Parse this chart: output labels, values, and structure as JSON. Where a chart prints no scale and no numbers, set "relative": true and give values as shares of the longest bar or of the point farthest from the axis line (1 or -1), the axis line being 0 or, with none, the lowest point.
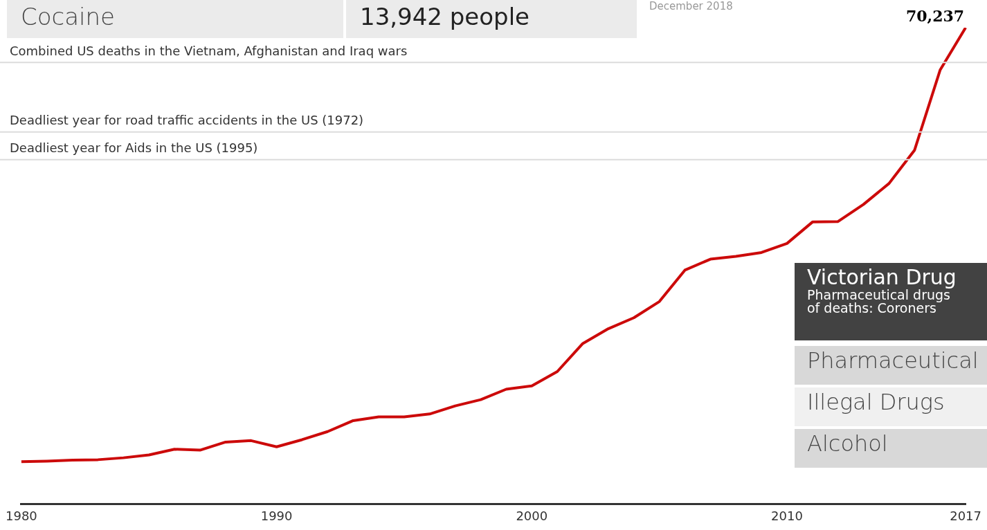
{
  "chart_data": {
    "type": "line",
    "relative": true,
    "categories": [
      "1980",
      null,
      null,
      null,
      null,
      null,
      null,
      null,
      null,
      null,
      "1990",
      null,
      null,
      null,
      null,
      null,
      null,
      null,
      null,
      null,
      "2000",
      null,
      null,
      null,
      null,
      null,
      null,
      null,
      null,
      null,
      "2010",
      null,
      null,
      null,
      null,
      null,
      null,
      "2017"
    ],
    "series": [
      {
        "color": "#cc0a0a",
        "values": [
          0.089,
          0.09,
          0.092,
          0.093,
          0.097,
          0.103,
          0.115,
          0.113,
          0.13,
          0.133,
          0.12,
          0.135,
          0.152,
          0.175,
          0.183,
          0.183,
          0.189,
          0.206,
          0.219,
          0.241,
          0.248,
          0.278,
          0.337,
          0.368,
          0.391,
          0.425,
          0.491,
          0.514,
          0.52,
          0.528,
          0.547,
          0.592,
          0.593,
          0.629,
          0.673,
          0.743,
          0.911,
          1
        ]
      }
    ],
    "ref_lines": [
      {
        "axis": "y",
        "value": 0.927,
        "label": "Combined US deaths in the Vietnam, Afghanistan and Iraq wars",
        "color": "#dcdcdc"
      },
      {
        "axis": "y",
        "value": 0.781,
        "label": "Deadliest year for road traffic accidents in the US (1972)",
        "color": "#dcdcdc"
      },
      {
        "axis": "y",
        "value": 0.723,
        "label": "Deadliest year for Aids in the US (1995)",
        "color": "#dcdcdc"
      }
    ],
    "annotations": [
      "Cocaine",
      "13,942 people",
      "December 2018",
      "Victorian Drug",
      "Pharmaceutical drugs",
      "of deaths: Coroners",
      "Pharmaceutical",
      "Illegal Drugs",
      "Alcohol",
      {
        "text": "70,237",
        "x": "2017",
        "y": 1
      }
    ],
    "marker": "none",
    "line_style": "solid",
    "grid": false,
    "legend": false,
    "tick_labels": "x"
  }
}
